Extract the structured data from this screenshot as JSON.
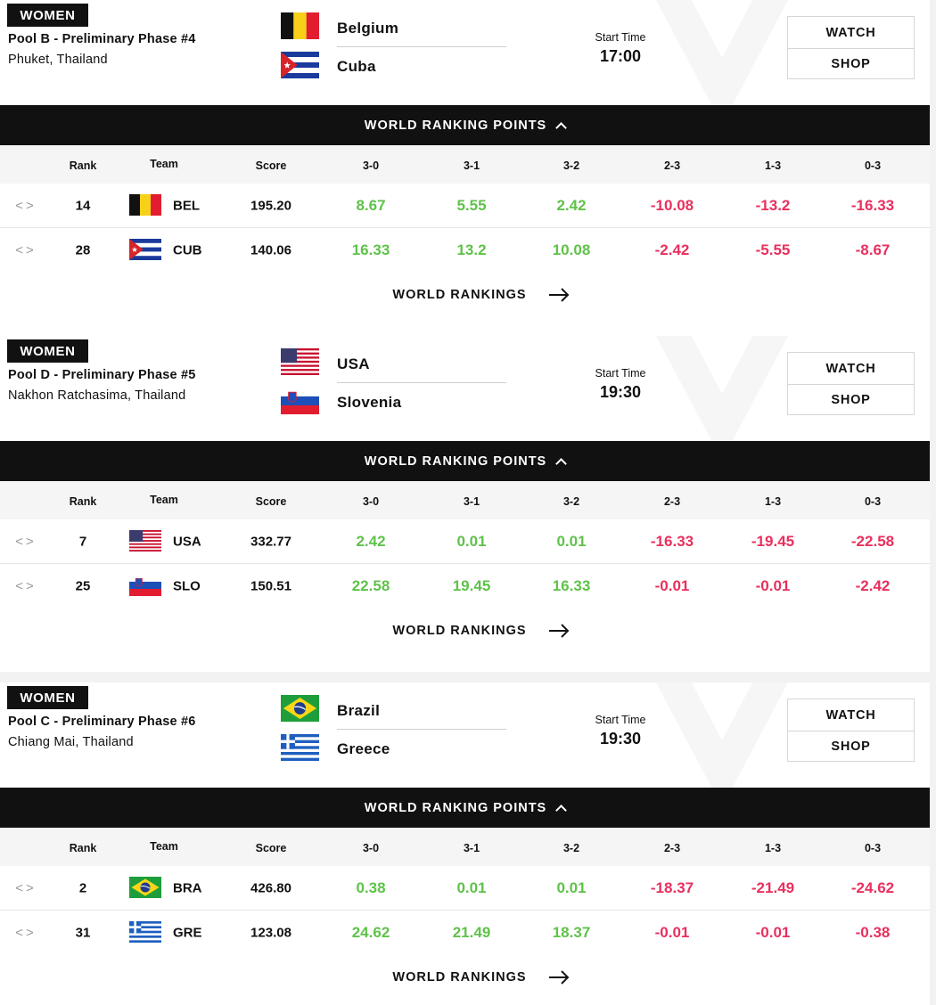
{
  "matches": [
    {
      "category": "WOMEN",
      "pool": "Pool B - Preliminary Phase #4",
      "venue": "Phuket, Thailand",
      "team_a": "Belgium",
      "team_b": "Cuba",
      "flag_a": "belgium-flag",
      "flag_b": "cuba-flag",
      "start_label": "Start Time",
      "start_time": "17:00",
      "watch_label": "WATCH",
      "shop_label": "SHOP",
      "wrp_label": "WORLD RANKING POINTS",
      "headers": [
        "Rank",
        "Team",
        "Score",
        "3-0",
        "3-1",
        "3-2",
        "2-3",
        "1-3",
        "0-3"
      ],
      "rows": [
        {
          "rank": "14",
          "code": "BEL",
          "score": "195.20",
          "points": [
            "8.67",
            "5.55",
            "2.42",
            "-10.08",
            "-13.2",
            "-16.33"
          ]
        },
        {
          "rank": "28",
          "code": "CUB",
          "score": "140.06",
          "points": [
            "16.33",
            "13.2",
            "10.08",
            "-2.42",
            "-5.55",
            "-8.67"
          ]
        }
      ],
      "rankings_link": "WORLD RANKINGS"
    },
    {
      "category": "WOMEN",
      "pool": "Pool D - Preliminary Phase #5",
      "venue": "Nakhon Ratchasima, Thailand",
      "team_a": "USA",
      "team_b": "Slovenia",
      "flag_a": "usa-flag",
      "flag_b": "slovenia-flag",
      "start_label": "Start Time",
      "start_time": "19:30",
      "watch_label": "WATCH",
      "shop_label": "SHOP",
      "wrp_label": "WORLD RANKING POINTS",
      "headers": [
        "Rank",
        "Team",
        "Score",
        "3-0",
        "3-1",
        "3-2",
        "2-3",
        "1-3",
        "0-3"
      ],
      "rows": [
        {
          "rank": "7",
          "code": "USA",
          "score": "332.77",
          "points": [
            "2.42",
            "0.01",
            "0.01",
            "-16.33",
            "-19.45",
            "-22.58"
          ]
        },
        {
          "rank": "25",
          "code": "SLO",
          "score": "150.51",
          "points": [
            "22.58",
            "19.45",
            "16.33",
            "-0.01",
            "-0.01",
            "-2.42"
          ]
        }
      ],
      "rankings_link": "WORLD RANKINGS"
    },
    {
      "category": "WOMEN",
      "pool": "Pool C - Preliminary Phase #6",
      "venue": "Chiang Mai, Thailand",
      "team_a": "Brazil",
      "team_b": "Greece",
      "flag_a": "brazil-flag",
      "flag_b": "greece-flag",
      "start_label": "Start Time",
      "start_time": "19:30",
      "watch_label": "WATCH",
      "shop_label": "SHOP",
      "wrp_label": "WORLD RANKING POINTS",
      "headers": [
        "Rank",
        "Team",
        "Score",
        "3-0",
        "3-1",
        "3-2",
        "2-3",
        "1-3",
        "0-3"
      ],
      "rows": [
        {
          "rank": "2",
          "code": "BRA",
          "score": "426.80",
          "points": [
            "0.38",
            "0.01",
            "0.01",
            "-18.37",
            "-21.49",
            "-24.62"
          ]
        },
        {
          "rank": "31",
          "code": "GRE",
          "score": "123.08",
          "points": [
            "24.62",
            "21.49",
            "18.37",
            "-0.01",
            "-0.01",
            "-0.38"
          ]
        }
      ],
      "rankings_link": "WORLD RANKINGS"
    }
  ],
  "icons": {
    "row_nav": "chevron-left-right-icon",
    "wrp_toggle": "chevron-up-icon",
    "rankings_arrow": "arrow-right-icon"
  },
  "colors": {
    "positive": "#5fc24a",
    "negative": "#e8305e",
    "bar": "#111111",
    "header_bg": "#f5f5f5"
  }
}
